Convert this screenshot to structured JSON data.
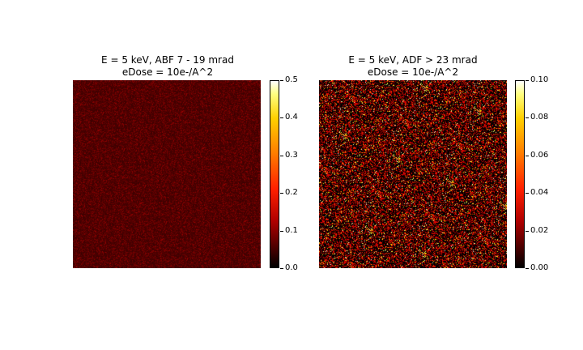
{
  "chart_data": [
    {
      "type": "heatmap",
      "title_line1": "E = 5 keV, ABF 7 - 19 mrad",
      "title_line2": "eDose = 10e-/A^2",
      "colormap": "hot",
      "colorbar": {
        "min": 0.0,
        "max": 0.5,
        "ticks": [
          "0.0",
          "0.1",
          "0.2",
          "0.3",
          "0.4",
          "0.5"
        ]
      },
      "typical_value_range": [
        0.0,
        0.12
      ],
      "axes_visible": false
    },
    {
      "type": "heatmap",
      "title_line1": "E = 5 keV, ADF > 23 mrad",
      "title_line2": "eDose = 10e-/A^2",
      "colormap": "hot",
      "colorbar": {
        "min": 0.0,
        "max": 0.1,
        "ticks": [
          "0.00",
          "0.02",
          "0.04",
          "0.06",
          "0.08",
          "0.10"
        ]
      },
      "typical_value_range": [
        0.0,
        0.1
      ],
      "axes_visible": false
    }
  ]
}
